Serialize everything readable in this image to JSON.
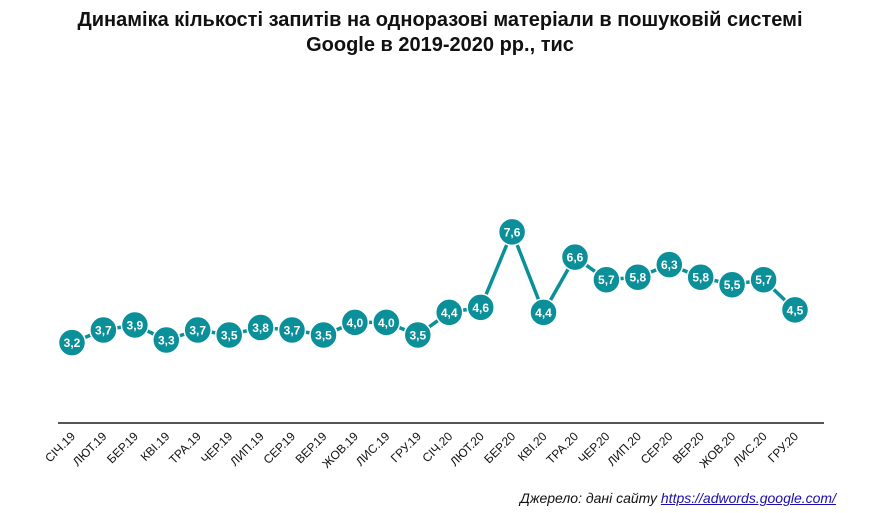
{
  "chart_data": {
    "type": "line",
    "title_line1": "Динаміка кількості запитів на одноразові матеріали в пошуковій системі",
    "title_line2": "Google в 2019-2020 рр., тис",
    "categories": [
      "СІЧ.19",
      "ЛЮТ.19",
      "БЕР.19",
      "КВІ.19",
      "ТРА.19",
      "ЧЕР.19",
      "ЛИП.19",
      "СЕР.19",
      "ВЕР.19",
      "ЖОВ.19",
      "ЛИС.19",
      "ГРУ.19",
      "СІЧ.20",
      "ЛЮТ.20",
      "БЕР.20",
      "КВІ.20",
      "ТРА.20",
      "ЧЕР.20",
      "ЛИП.20",
      "СЕР.20",
      "ВЕР.20",
      "ЖОВ.20",
      "ЛИС.20",
      "ГРУ.20"
    ],
    "values": [
      3.2,
      3.7,
      3.9,
      3.3,
      3.7,
      3.5,
      3.8,
      3.7,
      3.5,
      4.0,
      4.0,
      3.5,
      4.4,
      4.6,
      7.6,
      4.4,
      6.6,
      5.7,
      5.8,
      6.3,
      5.8,
      5.5,
      5.7,
      4.5
    ],
    "labels": [
      "3,2",
      "3,7",
      "3,9",
      "3,3",
      "3,7",
      "3,5",
      "3,8",
      "3,7",
      "3,5",
      "4,0",
      "4,0",
      "3,5",
      "4,4",
      "4,6",
      "7,6",
      "4,4",
      "6,6",
      "5,7",
      "5,8",
      "6,3",
      "5,8",
      "5,5",
      "5,7",
      "4,5"
    ],
    "line_color": "#0b8f99",
    "ylim": [
      0,
      8.8
    ],
    "grid": false
  },
  "source": {
    "prefix": "Джерело: дані сайту ",
    "link": "https://adwords.google.com/"
  }
}
